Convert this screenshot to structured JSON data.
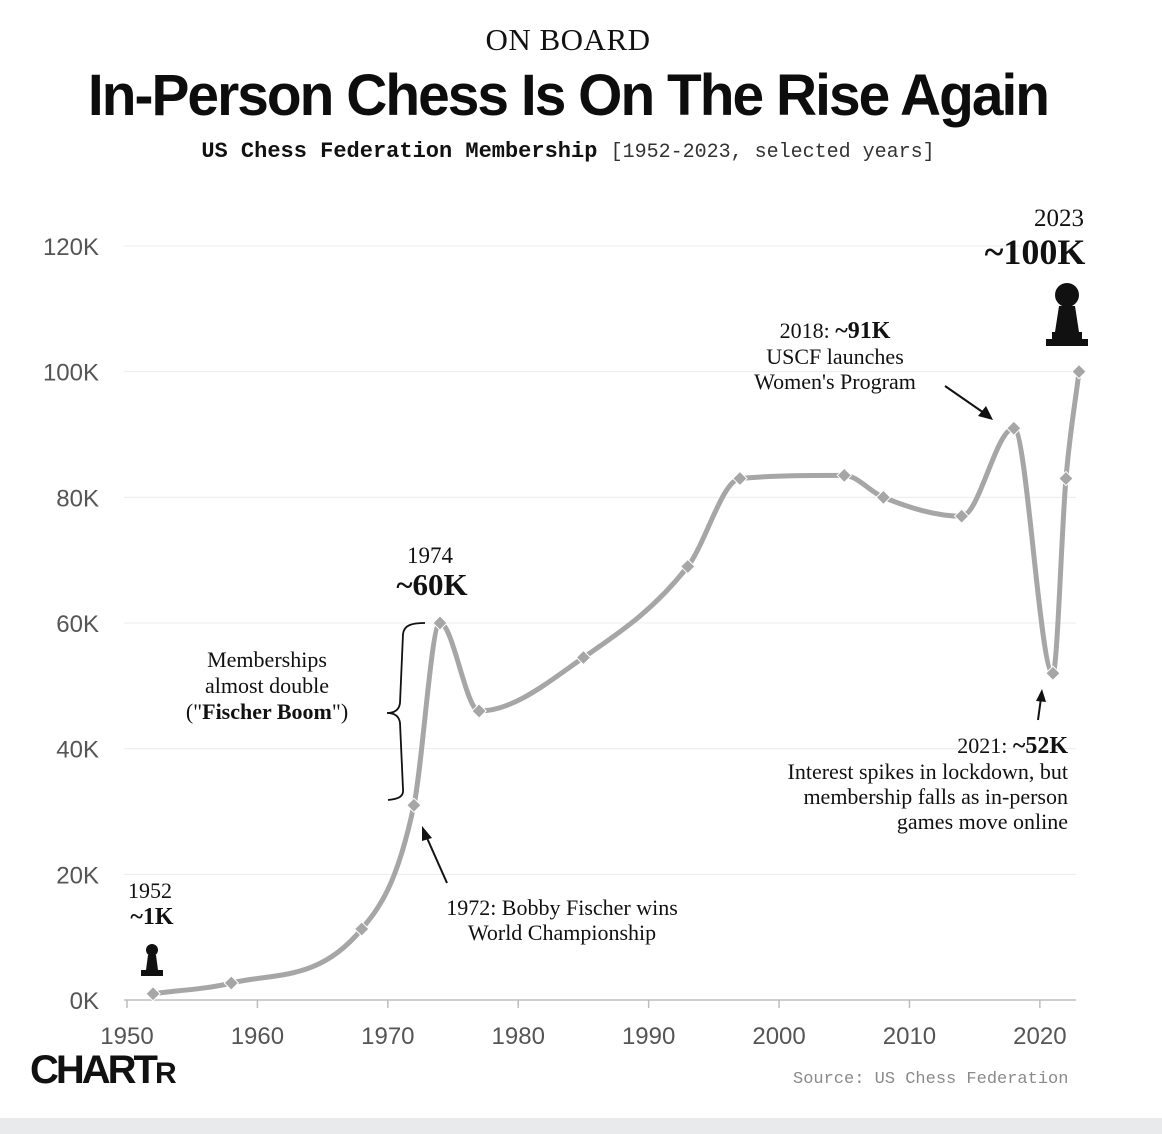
{
  "header": {
    "kicker": "ON BOARD",
    "title": "In-Person Chess Is On The Rise Again",
    "subtitle_main": "US Chess Federation Membership",
    "subtitle_range": "[1952-2023, selected years]"
  },
  "chart_data": {
    "type": "line",
    "title": "In-Person Chess Is On The Rise Again",
    "subtitle": "US Chess Federation Membership [1952-2023, selected years]",
    "xlabel": "",
    "ylabel": "",
    "xlim": [
      1950,
      2023
    ],
    "ylim": [
      0,
      120000
    ],
    "x_ticks": [
      1950,
      1960,
      1970,
      1980,
      1990,
      2000,
      2010,
      2020
    ],
    "y_ticks": [
      0,
      20000,
      40000,
      60000,
      80000,
      100000,
      120000
    ],
    "y_tick_labels": [
      "0K",
      "20K",
      "40K",
      "60K",
      "80K",
      "100K",
      "120K"
    ],
    "grid": true,
    "series": [
      {
        "name": "US Chess Federation Membership",
        "color": "#a6a6a6",
        "x": [
          1952,
          1958,
          1968,
          1972,
          1974,
          1977,
          1985,
          1993,
          1997,
          2005,
          2008,
          2014,
          2018,
          2021,
          2022,
          2023
        ],
        "values": [
          1000,
          2700,
          11300,
          31000,
          60000,
          46000,
          54500,
          69000,
          83000,
          83500,
          80000,
          77000,
          91000,
          52000,
          83000,
          100000
        ]
      }
    ],
    "annotations": {
      "a1952": {
        "year": "1952",
        "value": "~1K"
      },
      "a1974": {
        "year": "1974",
        "value": "~60K"
      },
      "a2023": {
        "year": "2023",
        "value": "~100K"
      },
      "a2018": {
        "prefix": "2018: ",
        "value": "~91K",
        "line1": "USCF launches",
        "line2": "Women's Program"
      },
      "a2021": {
        "prefix": "2021: ",
        "value": "~52K",
        "line1": "Interest spikes in lockdown, but",
        "line2": "membership falls as in-person",
        "line3": "games move online"
      },
      "a1972": {
        "line1": "1972: Bobby Fischer wins",
        "line2": "World Championship"
      },
      "boom": {
        "line1": "Memberships",
        "line2": "almost double",
        "line3_open": "(\"",
        "line3_bold": "Fischer Boom",
        "line3_close": "\")"
      }
    }
  },
  "footer": {
    "logo_big_c": "C",
    "logo_rest": "HART",
    "logo_small": "R",
    "source": "Source: US Chess Federation"
  }
}
